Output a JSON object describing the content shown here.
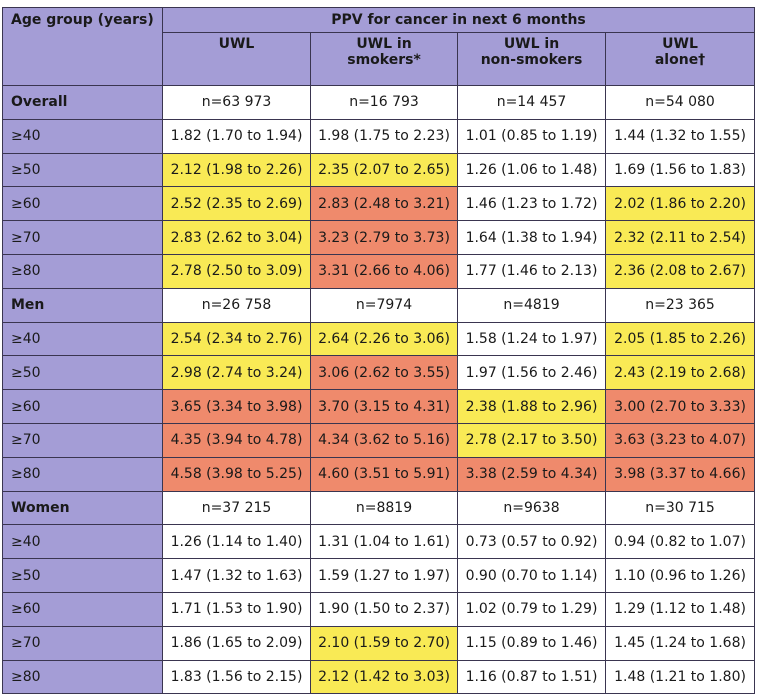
{
  "header": {
    "title": "Age group (years)",
    "group": "PPV for cancer in next 6 months",
    "columns": [
      "UWL",
      "UWL in\nsmokers*",
      "UWL in\nnon-smokers",
      "UWL\nalone†"
    ]
  },
  "rows": [
    {
      "label": "Overall",
      "cells": [
        "n=63 973",
        "n=16 793",
        "n=14 457",
        "n=54 080"
      ],
      "colors": [
        "#ffffff",
        "#ffffff",
        "#ffffff",
        "#ffffff"
      ]
    },
    {
      "label": "≥40",
      "cells": [
        "1.82 (1.70 to 1.94)",
        "1.98 (1.75 to 2.23)",
        "1.01 (0.85 to 1.19)",
        "1.44 (1.32 to 1.55)"
      ],
      "colors": [
        "#ffffff",
        "#ffffff",
        "#ffffff",
        "#ffffff"
      ]
    },
    {
      "label": "≥50",
      "cells": [
        "2.12 (1.98 to 2.26)",
        "2.35 (2.07 to 2.65)",
        "1.26 (1.06 to 1.48)",
        "1.69 (1.56 to 1.83)"
      ],
      "colors": [
        "#f9ea55",
        "#f9ea55",
        "#ffffff",
        "#ffffff"
      ]
    },
    {
      "label": "≥60",
      "cells": [
        "2.52 (2.35 to 2.69)",
        "2.83 (2.48 to 3.21)",
        "1.46 (1.23 to 1.72)",
        "2.02 (1.86 to 2.20)"
      ],
      "colors": [
        "#f9ea55",
        "#ef8a6c",
        "#ffffff",
        "#f9ea55"
      ]
    },
    {
      "label": "≥70",
      "cells": [
        "2.83 (2.62 to 3.04)",
        "3.23 (2.79 to 3.73)",
        "1.64 (1.38 to 1.94)",
        "2.32 (2.11 to 2.54)"
      ],
      "colors": [
        "#f9ea55",
        "#ef8a6c",
        "#ffffff",
        "#f9ea55"
      ]
    },
    {
      "label": "≥80",
      "cells": [
        "2.78 (2.50 to 3.09)",
        "3.31 (2.66 to 4.06)",
        "1.77 (1.46 to 2.13)",
        "2.36 (2.08 to 2.67)"
      ],
      "colors": [
        "#f9ea55",
        "#ef8a6c",
        "#ffffff",
        "#f9ea55"
      ]
    },
    {
      "label": "Men",
      "cells": [
        "n=26 758",
        "n=7974",
        "n=4819",
        "n=23 365"
      ],
      "colors": [
        "#ffffff",
        "#ffffff",
        "#ffffff",
        "#ffffff"
      ]
    },
    {
      "label": "≥40",
      "cells": [
        "2.54 (2.34 to 2.76)",
        "2.64 (2.26 to 3.06)",
        "1.58 (1.24 to 1.97)",
        "2.05 (1.85 to 2.26)"
      ],
      "colors": [
        "#f9ea55",
        "#f9ea55",
        "#ffffff",
        "#f9ea55"
      ]
    },
    {
      "label": "≥50",
      "cells": [
        "2.98 (2.74 to 3.24)",
        "3.06 (2.62 to 3.55)",
        "1.97 (1.56 to 2.46)",
        "2.43 (2.19 to 2.68)"
      ],
      "colors": [
        "#f9ea55",
        "#ef8a6c",
        "#ffffff",
        "#f9ea55"
      ]
    },
    {
      "label": "≥60",
      "cells": [
        "3.65 (3.34 to 3.98)",
        "3.70 (3.15 to 4.31)",
        "2.38 (1.88 to 2.96)",
        "3.00 (2.70 to 3.33)"
      ],
      "colors": [
        "#ef8a6c",
        "#ef8a6c",
        "#f9ea55",
        "#ef8a6c"
      ]
    },
    {
      "label": "≥70",
      "cells": [
        "4.35 (3.94 to 4.78)",
        "4.34 (3.62 to 5.16)",
        "2.78 (2.17 to 3.50)",
        "3.63 (3.23 to 4.07)"
      ],
      "colors": [
        "#ef8a6c",
        "#ef8a6c",
        "#f9ea55",
        "#ef8a6c"
      ]
    },
    {
      "label": "≥80",
      "cells": [
        "4.58 (3.98 to 5.25)",
        "4.60 (3.51 to 5.91)",
        "3.38 (2.59 to 4.34)",
        "3.98 (3.37 to 4.66)"
      ],
      "colors": [
        "#ef8a6c",
        "#ef8a6c",
        "#ef8a6c",
        "#ef8a6c"
      ]
    },
    {
      "label": "Women",
      "cells": [
        "n=37 215",
        "n=8819",
        "n=9638",
        "n=30 715"
      ],
      "colors": [
        "#ffffff",
        "#ffffff",
        "#ffffff",
        "#ffffff"
      ]
    },
    {
      "label": "≥40",
      "cells": [
        "1.26 (1.14 to 1.40)",
        "1.31 (1.04 to 1.61)",
        "0.73 (0.57 to 0.92)",
        "0.94 (0.82 to 1.07)"
      ],
      "colors": [
        "#ffffff",
        "#ffffff",
        "#ffffff",
        "#ffffff"
      ]
    },
    {
      "label": "≥50",
      "cells": [
        "1.47 (1.32 to 1.63)",
        "1.59 (1.27 to 1.97)",
        "0.90 (0.70 to 1.14)",
        "1.10 (0.96 to 1.26)"
      ],
      "colors": [
        "#ffffff",
        "#ffffff",
        "#ffffff",
        "#ffffff"
      ]
    },
    {
      "label": "≥60",
      "cells": [
        "1.71 (1.53 to 1.90)",
        "1.90 (1.50 to 2.37)",
        "1.02 (0.79 to 1.29)",
        "1.29 (1.12 to 1.48)"
      ],
      "colors": [
        "#ffffff",
        "#ffffff",
        "#ffffff",
        "#ffffff"
      ]
    },
    {
      "label": "≥70",
      "cells": [
        "1.86 (1.65 to 2.09)",
        "2.10 (1.59 to 2.70)",
        "1.15 (0.89 to 1.46)",
        "1.45 (1.24 to 1.68)"
      ],
      "colors": [
        "#ffffff",
        "#f9ea55",
        "#ffffff",
        "#ffffff"
      ]
    },
    {
      "label": "≥80",
      "cells": [
        "1.83 (1.56 to 2.15)",
        "2.12 (1.42 to 3.03)",
        "1.16 (0.87 to 1.51)",
        "1.48 (1.21 to 1.80)"
      ],
      "colors": [
        "#ffffff",
        "#f9ea55",
        "#ffffff",
        "#ffffff"
      ]
    }
  ]
}
